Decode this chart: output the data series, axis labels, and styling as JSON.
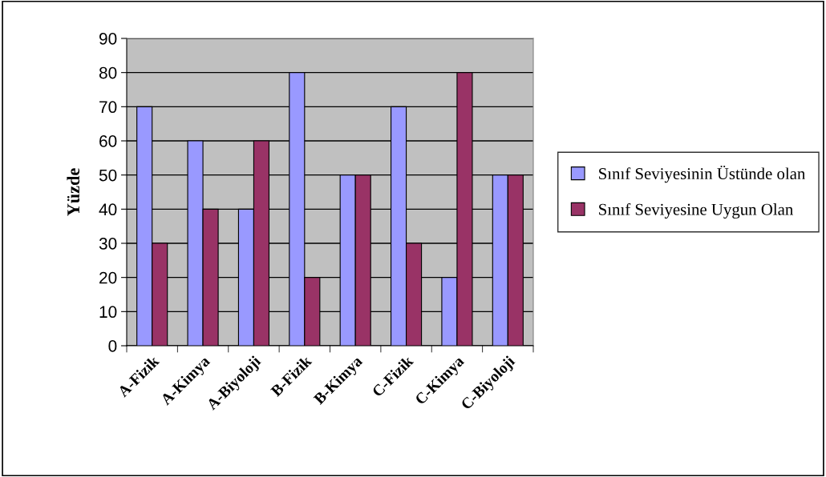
{
  "chart_data": {
    "type": "bar",
    "ylabel": "Yüzde",
    "categories": [
      "A-Fizik",
      "A-Kimya",
      "A-Biyoloji",
      "B-Fizik",
      "B-Kimya",
      "C-Fizik",
      "C-Kimya",
      "C-Biyoloji"
    ],
    "series": [
      {
        "name": "Sınıf Seviyesinin Üstünde olan",
        "color": "#9999ff",
        "values": [
          70,
          60,
          40,
          80,
          50,
          70,
          20,
          50
        ]
      },
      {
        "name": "Sınıf Seviyesine Uygun Olan",
        "color": "#993366",
        "values": [
          30,
          40,
          60,
          20,
          50,
          30,
          80,
          50
        ]
      }
    ],
    "ylim": [
      0,
      90
    ],
    "yticks": [
      0,
      10,
      20,
      30,
      40,
      50,
      60,
      70,
      80,
      90
    ],
    "grid": "y",
    "legend": "right"
  }
}
